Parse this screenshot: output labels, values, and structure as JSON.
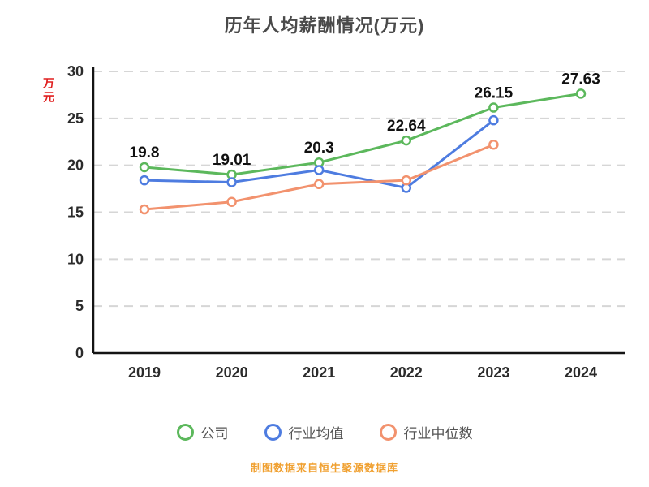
{
  "title": "历年人均薪酬情况(万元)",
  "y_axis_label": "万元",
  "footer": "制图数据来自恒生聚源数据库",
  "colors": {
    "title_text": "#4a4a4a",
    "y_axis_label_text": "#e02020",
    "footer_text": "#f0a030",
    "axis": "#141414",
    "gridline": "#d6d6d6",
    "tick_text": "#2b2b2b",
    "data_label_text": "#111111",
    "legend_text": "#555555",
    "background": "#ffffff"
  },
  "chart_data": {
    "type": "line",
    "title": "历年人均薪酬情况(万元)",
    "xlabel": "",
    "ylabel": "万元",
    "categories": [
      "2019",
      "2020",
      "2021",
      "2022",
      "2023",
      "2024"
    ],
    "series": [
      {
        "name": "公司",
        "color": "#5cb85c",
        "values": [
          19.8,
          19.01,
          20.3,
          22.64,
          26.15,
          27.63
        ],
        "data_labels": [
          "19.8",
          "19.01",
          "20.3",
          "22.64",
          "26.15",
          "27.63"
        ]
      },
      {
        "name": "行业均值",
        "color": "#4e7ce0",
        "values": [
          18.4,
          18.2,
          19.5,
          17.6,
          24.8,
          null
        ],
        "data_labels": null
      },
      {
        "name": "行业中位数",
        "color": "#f2926e",
        "values": [
          15.3,
          16.1,
          18.0,
          18.4,
          22.2,
          null
        ],
        "data_labels": null
      }
    ],
    "ylim": [
      0,
      30
    ],
    "yticks": [
      0,
      5,
      10,
      15,
      20,
      25,
      30
    ],
    "grid": "horizontal-dashed",
    "legend_position": "bottom",
    "marker": "open-circle"
  }
}
